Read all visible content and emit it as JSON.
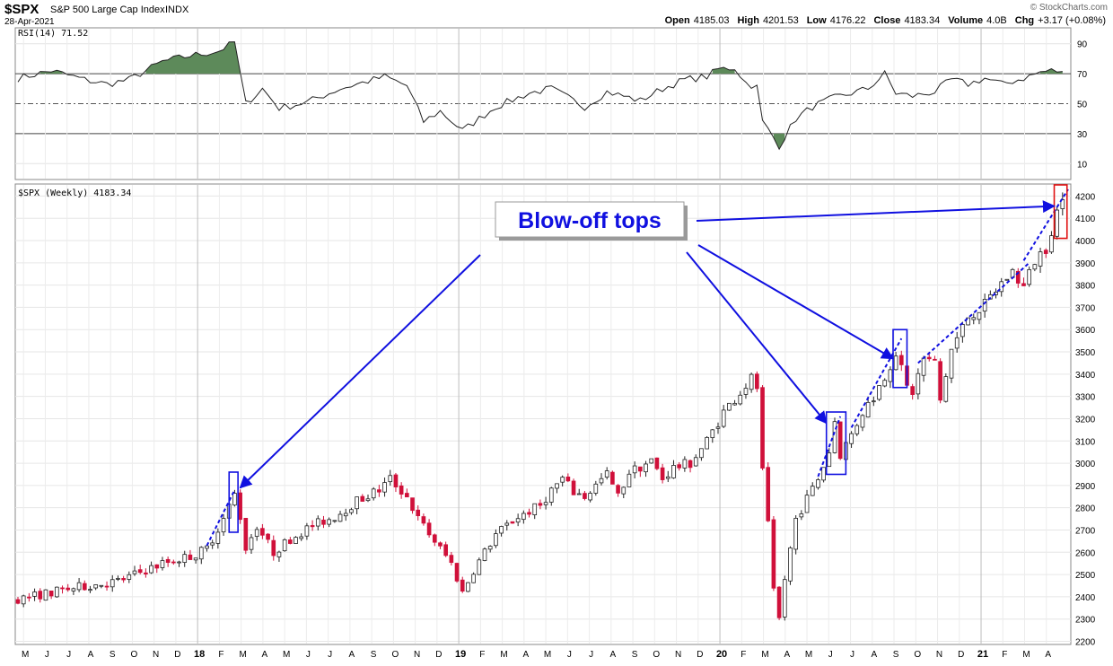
{
  "header": {
    "symbol": "$SPX",
    "name": "S&P 500 Large Cap Index",
    "exchange": "INDX",
    "date": "28-Apr-2021",
    "ohlc": [
      {
        "label": "Open",
        "value": "4185.03"
      },
      {
        "label": "High",
        "value": "4201.53"
      },
      {
        "label": "Low",
        "value": "4176.22"
      },
      {
        "label": "Close",
        "value": "4183.34"
      },
      {
        "label": "Volume",
        "value": "4.0B"
      },
      {
        "label": "Chg",
        "value": "+3.17 (+0.08%)"
      }
    ],
    "watermark": "© StockCharts.com"
  },
  "rsi_panel": {
    "label": "RSI(14) 71.52",
    "ticks": [
      90,
      70,
      50,
      30,
      10
    ],
    "overbought": 70,
    "oversold": 30,
    "middle": 50,
    "fill_color": "#5d8a5a"
  },
  "price_panel": {
    "label": "$SPX (Weekly) 4183.34",
    "ticks": [
      2200,
      2300,
      2400,
      2500,
      2600,
      2700,
      2800,
      2900,
      3000,
      3100,
      3200,
      3300,
      3400,
      3500,
      3600,
      3700,
      3800,
      3900,
      4000,
      4100,
      4200
    ],
    "up_color": "#ffffff",
    "down_color": "#d0103a",
    "annotation_color": "#1010e0",
    "highlight_color": "#e01010"
  },
  "x_labels": [
    "M",
    "J",
    "J",
    "A",
    "S",
    "O",
    "N",
    "D",
    "18",
    "F",
    "M",
    "A",
    "M",
    "J",
    "J",
    "A",
    "S",
    "O",
    "N",
    "D",
    "19",
    "F",
    "M",
    "A",
    "M",
    "J",
    "J",
    "A",
    "S",
    "O",
    "N",
    "D",
    "20",
    "F",
    "M",
    "A",
    "M",
    "J",
    "J",
    "A",
    "S",
    "O",
    "N",
    "D",
    "21",
    "F",
    "M",
    "A"
  ],
  "annotation": {
    "text": "Blow-off tops"
  },
  "chart_data": {
    "type": "candlestick",
    "x_range": [
      "2017-05",
      "2021-04"
    ],
    "ylim": [
      2190,
      4250
    ],
    "rsi_ylim": [
      0,
      100
    ],
    "rsi_anchors": [
      {
        "week": 0,
        "rsi": 67
      },
      {
        "week": 6,
        "rsi": 72
      },
      {
        "week": 12,
        "rsi": 66
      },
      {
        "week": 16,
        "rsi": 63
      },
      {
        "week": 20,
        "rsi": 66
      },
      {
        "week": 26,
        "rsi": 78
      },
      {
        "week": 31,
        "rsi": 82
      },
      {
        "week": 36,
        "rsi": 85
      },
      {
        "week": 39,
        "rsi": 91
      },
      {
        "week": 40,
        "rsi": 70
      },
      {
        "week": 41,
        "rsi": 50
      },
      {
        "week": 44,
        "rsi": 60
      },
      {
        "week": 47,
        "rsi": 47
      },
      {
        "week": 52,
        "rsi": 51
      },
      {
        "week": 58,
        "rsi": 60
      },
      {
        "week": 66,
        "rsi": 68
      },
      {
        "week": 70,
        "rsi": 62
      },
      {
        "week": 73,
        "rsi": 38
      },
      {
        "week": 76,
        "rsi": 45
      },
      {
        "week": 80,
        "rsi": 32
      },
      {
        "week": 86,
        "rsi": 48
      },
      {
        "week": 92,
        "rsi": 57
      },
      {
        "week": 96,
        "rsi": 60
      },
      {
        "week": 102,
        "rsi": 48
      },
      {
        "week": 106,
        "rsi": 58
      },
      {
        "week": 112,
        "rsi": 52
      },
      {
        "week": 116,
        "rsi": 60
      },
      {
        "week": 120,
        "rsi": 66
      },
      {
        "week": 124,
        "rsi": 68
      },
      {
        "week": 126,
        "rsi": 73
      },
      {
        "week": 129,
        "rsi": 74
      },
      {
        "week": 131,
        "rsi": 64
      },
      {
        "week": 133,
        "rsi": 61
      },
      {
        "week": 134,
        "rsi": 38
      },
      {
        "week": 137,
        "rsi": 22
      },
      {
        "week": 140,
        "rsi": 40
      },
      {
        "week": 143,
        "rsi": 48
      },
      {
        "week": 147,
        "rsi": 54
      },
      {
        "week": 150,
        "rsi": 57
      },
      {
        "week": 153,
        "rsi": 60
      },
      {
        "week": 156,
        "rsi": 70
      },
      {
        "week": 158,
        "rsi": 57
      },
      {
        "week": 161,
        "rsi": 55
      },
      {
        "week": 165,
        "rsi": 58
      },
      {
        "week": 168,
        "rsi": 66
      },
      {
        "week": 171,
        "rsi": 63
      },
      {
        "week": 174,
        "rsi": 67
      },
      {
        "week": 177,
        "rsi": 63
      },
      {
        "week": 181,
        "rsi": 67
      },
      {
        "week": 184,
        "rsi": 71
      },
      {
        "week": 186,
        "rsi": 72
      },
      {
        "week": 188,
        "rsi": 71.5
      }
    ],
    "close_anchors": [
      {
        "week": 0,
        "close": 2390
      },
      {
        "week": 10,
        "close": 2440
      },
      {
        "week": 18,
        "close": 2470
      },
      {
        "week": 26,
        "close": 2550
      },
      {
        "week": 32,
        "close": 2590
      },
      {
        "week": 34,
        "close": 2620
      },
      {
        "week": 37,
        "close": 2750
      },
      {
        "week": 39,
        "close": 2860
      },
      {
        "week": 40,
        "close": 2760
      },
      {
        "week": 41,
        "close": 2620
      },
      {
        "week": 43,
        "close": 2720
      },
      {
        "week": 46,
        "close": 2600
      },
      {
        "week": 49,
        "close": 2660
      },
      {
        "week": 53,
        "close": 2720
      },
      {
        "week": 57,
        "close": 2760
      },
      {
        "week": 61,
        "close": 2830
      },
      {
        "week": 65,
        "close": 2880
      },
      {
        "week": 67,
        "close": 2930
      },
      {
        "week": 70,
        "close": 2850
      },
      {
        "week": 72,
        "close": 2750
      },
      {
        "week": 75,
        "close": 2650
      },
      {
        "week": 78,
        "close": 2550
      },
      {
        "week": 80,
        "close": 2420
      },
      {
        "week": 82,
        "close": 2520
      },
      {
        "week": 86,
        "close": 2680
      },
      {
        "week": 90,
        "close": 2760
      },
      {
        "week": 94,
        "close": 2810
      },
      {
        "week": 96,
        "close": 2880
      },
      {
        "week": 98,
        "close": 2930
      },
      {
        "week": 100,
        "close": 2870
      },
      {
        "week": 102,
        "close": 2850
      },
      {
        "week": 104,
        "close": 2900
      },
      {
        "week": 106,
        "close": 2950
      },
      {
        "week": 108,
        "close": 2850
      },
      {
        "week": 110,
        "close": 2960
      },
      {
        "week": 114,
        "close": 3010
      },
      {
        "week": 116,
        "close": 2930
      },
      {
        "week": 118,
        "close": 2980
      },
      {
        "week": 121,
        "close": 3000
      },
      {
        "week": 124,
        "close": 3100
      },
      {
        "week": 127,
        "close": 3230
      },
      {
        "week": 130,
        "close": 3320
      },
      {
        "week": 132,
        "close": 3380
      },
      {
        "week": 133,
        "close": 3340
      },
      {
        "week": 134,
        "close": 2960
      },
      {
        "week": 135,
        "close": 2720
      },
      {
        "week": 136,
        "close": 2420
      },
      {
        "week": 137,
        "close": 2300
      },
      {
        "week": 138,
        "close": 2480
      },
      {
        "week": 140,
        "close": 2750
      },
      {
        "week": 142,
        "close": 2840
      },
      {
        "week": 144,
        "close": 2930
      },
      {
        "week": 146,
        "close": 3050
      },
      {
        "week": 147,
        "close": 3190
      },
      {
        "week": 148,
        "close": 3040
      },
      {
        "week": 150,
        "close": 3130
      },
      {
        "week": 152,
        "close": 3230
      },
      {
        "week": 154,
        "close": 3300
      },
      {
        "week": 156,
        "close": 3390
      },
      {
        "week": 158,
        "close": 3500
      },
      {
        "week": 159,
        "close": 3420
      },
      {
        "week": 160,
        "close": 3340
      },
      {
        "week": 161,
        "close": 3320
      },
      {
        "week": 163,
        "close": 3470
      },
      {
        "week": 165,
        "close": 3450
      },
      {
        "week": 166,
        "close": 3280
      },
      {
        "week": 168,
        "close": 3510
      },
      {
        "week": 171,
        "close": 3660
      },
      {
        "week": 174,
        "close": 3710
      },
      {
        "week": 177,
        "close": 3810
      },
      {
        "week": 179,
        "close": 3860
      },
      {
        "week": 181,
        "close": 3790
      },
      {
        "week": 183,
        "close": 3910
      },
      {
        "week": 185,
        "close": 3970
      },
      {
        "week": 187,
        "close": 4130
      },
      {
        "week": 188,
        "close": 4183
      }
    ],
    "trendlines": [
      {
        "from": {
          "week": 34,
          "price": 2630
        },
        "to": {
          "week": 39,
          "price": 2880
        }
      },
      {
        "from": {
          "week": 144,
          "price": 2940
        },
        "to": {
          "week": 148,
          "price": 3210
        }
      },
      {
        "from": {
          "week": 150,
          "price": 3160
        },
        "to": {
          "week": 159,
          "price": 3560
        }
      },
      {
        "from": {
          "week": 162,
          "price": 3450
        },
        "to": {
          "week": 182,
          "price": 3900
        }
      },
      {
        "from": {
          "week": 181,
          "price": 3910
        },
        "to": {
          "week": 189,
          "price": 4230
        }
      }
    ],
    "blowoff_boxes": [
      {
        "from_week": 38,
        "to_week": 39.6,
        "low": 2690,
        "high": 2960,
        "kind": "blue"
      },
      {
        "from_week": 145.5,
        "to_week": 149,
        "low": 2950,
        "high": 3230,
        "kind": "blue"
      },
      {
        "from_week": 157.5,
        "to_week": 160,
        "low": 3340,
        "high": 3600,
        "kind": "blue"
      },
      {
        "from_week": 186.5,
        "to_week": 188.8,
        "low": 4010,
        "high": 4250,
        "kind": "red"
      }
    ],
    "annotation_targets": [
      {
        "week": 40,
        "price": 2890
      },
      {
        "week": 145.5,
        "price": 3180
      },
      {
        "week": 157.5,
        "price": 3470
      },
      {
        "week": 186.5,
        "price": 4155
      }
    ]
  }
}
